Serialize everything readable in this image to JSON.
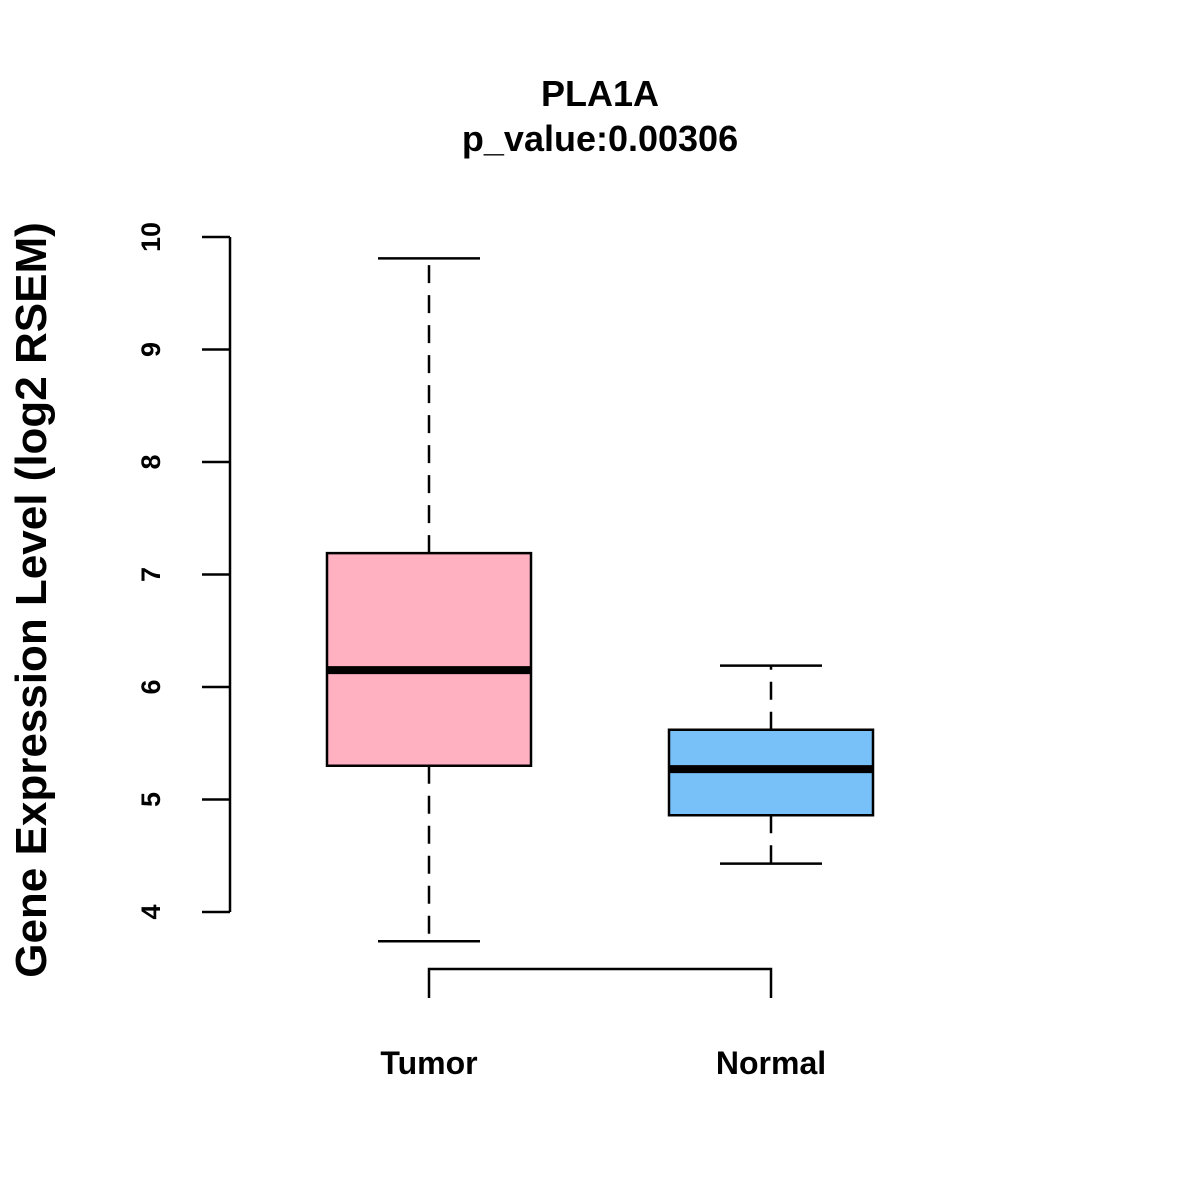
{
  "chart_data": {
    "type": "boxplot",
    "title": "PLA1A",
    "subtitle": "p_value:0.00306",
    "xlabel": "",
    "ylabel": "Gene Expression Level (log2 RSEM)",
    "ylim": [
      4,
      10
    ],
    "yticks": [
      4,
      5,
      6,
      7,
      8,
      9,
      10
    ],
    "grid": false,
    "categories": [
      "Tumor",
      "Normal"
    ],
    "boxes": [
      {
        "name": "Tumor",
        "min": 3.74,
        "q1": 5.3,
        "median": 6.15,
        "q3": 7.19,
        "max": 9.81,
        "color": "#FFB1C2"
      },
      {
        "name": "Normal",
        "min": 4.43,
        "q1": 4.86,
        "median": 5.27,
        "q3": 5.62,
        "max": 6.19,
        "color": "#78C0F8"
      }
    ],
    "comparison_bracket": {
      "from": "Tumor",
      "to": "Normal"
    }
  }
}
